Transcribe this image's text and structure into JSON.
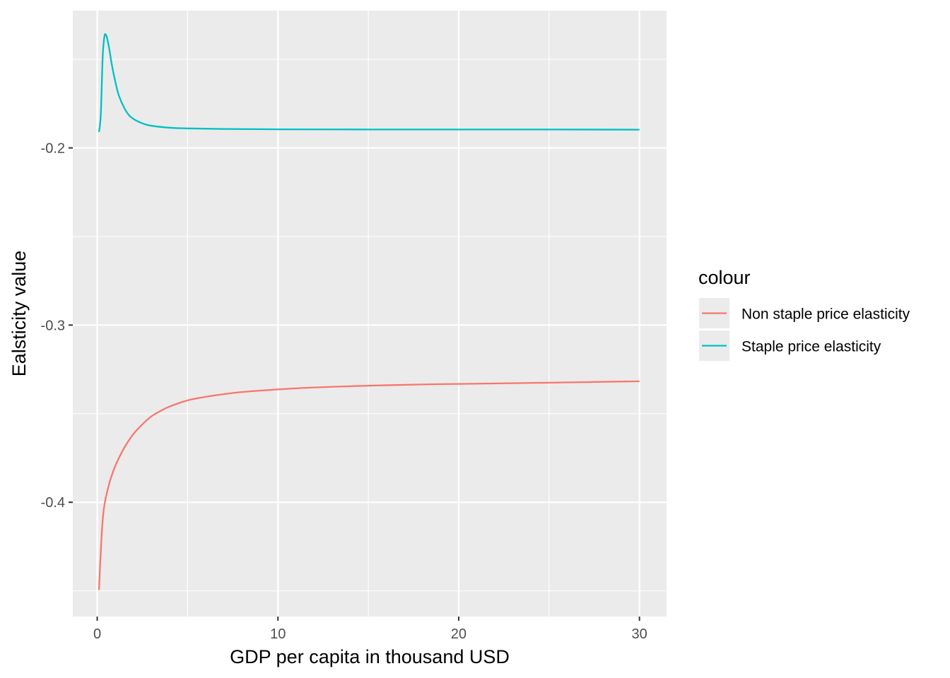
{
  "chart_data": {
    "type": "line",
    "title": "",
    "xlabel": "GDP per capita in thousand USD",
    "ylabel": "Ealsticity value",
    "xlim": [
      -1.35,
      31.5
    ],
    "ylim": [
      -0.4645,
      -0.1225
    ],
    "xticks": [
      0,
      10,
      20,
      30
    ],
    "xtick_labels": [
      "0",
      "10",
      "20",
      "30"
    ],
    "xminor": [
      5,
      15,
      25
    ],
    "yticks": [
      -0.4,
      -0.3,
      -0.2
    ],
    "ytick_labels": [
      "-0.4",
      "-0.3",
      "-0.2"
    ],
    "yminor": [
      -0.45,
      -0.35,
      -0.25,
      -0.15
    ],
    "grid": true,
    "legend_title": "colour",
    "legend_position": "right",
    "series": [
      {
        "name": "Non staple price elasticity",
        "color": "#F8766D",
        "x": [
          0.1,
          0.2,
          0.3,
          0.4,
          0.6,
          0.8,
          1.0,
          1.3,
          1.6,
          2.0,
          2.5,
          3.0,
          3.5,
          4.0,
          5.0,
          6.0,
          7.0,
          8.0,
          10.0,
          12.0,
          15.0,
          18.0,
          20.0,
          25.0,
          30.0
        ],
        "values": [
          -0.4495,
          -0.4275,
          -0.4105,
          -0.4015,
          -0.392,
          -0.385,
          -0.3795,
          -0.373,
          -0.3675,
          -0.3615,
          -0.356,
          -0.3515,
          -0.3485,
          -0.346,
          -0.3425,
          -0.3405,
          -0.339,
          -0.3378,
          -0.3363,
          -0.3352,
          -0.3342,
          -0.3335,
          -0.3332,
          -0.3325,
          -0.3317
        ]
      },
      {
        "name": "Staple price elasticity",
        "color": "#00BFC4",
        "x": [
          0.1,
          0.2,
          0.3,
          0.4,
          0.5,
          0.6,
          0.7,
          0.8,
          1.0,
          1.2,
          1.5,
          1.8,
          2.2,
          2.6,
          3.0,
          4.0,
          5.0,
          7.0,
          10.0,
          15.0,
          20.0,
          25.0,
          30.0
        ],
        "values": [
          -0.191,
          -0.181,
          -0.1495,
          -0.137,
          -0.1365,
          -0.1405,
          -0.146,
          -0.1525,
          -0.1625,
          -0.1705,
          -0.1775,
          -0.182,
          -0.1848,
          -0.1865,
          -0.1875,
          -0.1886,
          -0.189,
          -0.1893,
          -0.1895,
          -0.1896,
          -0.1896,
          -0.1896,
          -0.1897
        ]
      }
    ]
  }
}
